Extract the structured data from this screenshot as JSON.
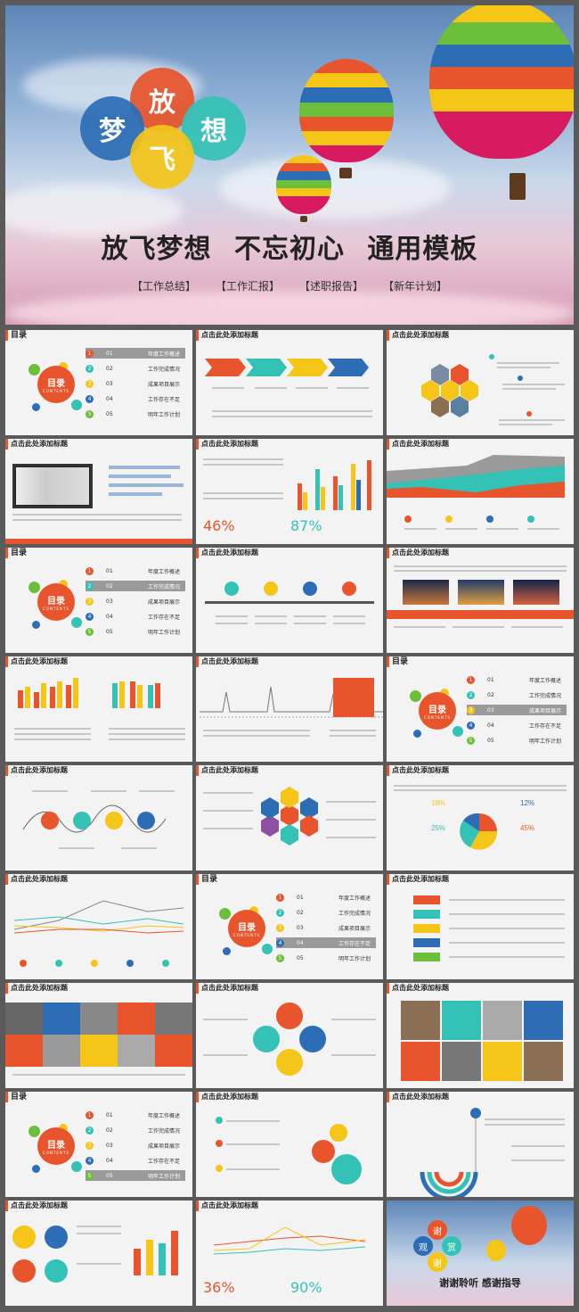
{
  "hero": {
    "bubbles": [
      "放",
      "梦",
      "想",
      "飞"
    ],
    "title": "放飞梦想  不忘初心  通用模板",
    "tags": [
      "【工作总结】",
      "【工作汇报】",
      "【述职报告】",
      "【新年计划】"
    ]
  },
  "common": {
    "slide_title": "点击此处添加标题",
    "toc_title": "目录",
    "toc_circle": "目录",
    "toc_circle_sub": "CONTENTS",
    "toc_items": [
      {
        "num": "1",
        "code": "01",
        "label": "年度工作概述"
      },
      {
        "num": "2",
        "code": "02",
        "label": "工作完成情况"
      },
      {
        "num": "3",
        "code": "03",
        "label": "成果项目展示"
      },
      {
        "num": "4",
        "code": "04",
        "label": "工作存在不足"
      },
      {
        "num": "5",
        "code": "05",
        "label": "明年工作计划"
      }
    ]
  },
  "slides": {
    "s5": {
      "pct1": "46%",
      "pct2": "87%"
    },
    "s20": {
      "pct1": "36%",
      "pct2": "90%"
    },
    "s16": {
      "pcts": [
        "18%",
        "12%",
        "25%",
        "45%"
      ]
    },
    "end": {
      "title": "谢谢聆听  感谢指导",
      "bubbles": [
        "谢",
        "观",
        "赏",
        "谢"
      ]
    }
  },
  "colors": {
    "orange": "#e8542b",
    "yellow": "#f5c518",
    "teal": "#34c2b6",
    "blue": "#2d6db5",
    "green": "#6cbf3a",
    "purple": "#8e4fa6"
  }
}
